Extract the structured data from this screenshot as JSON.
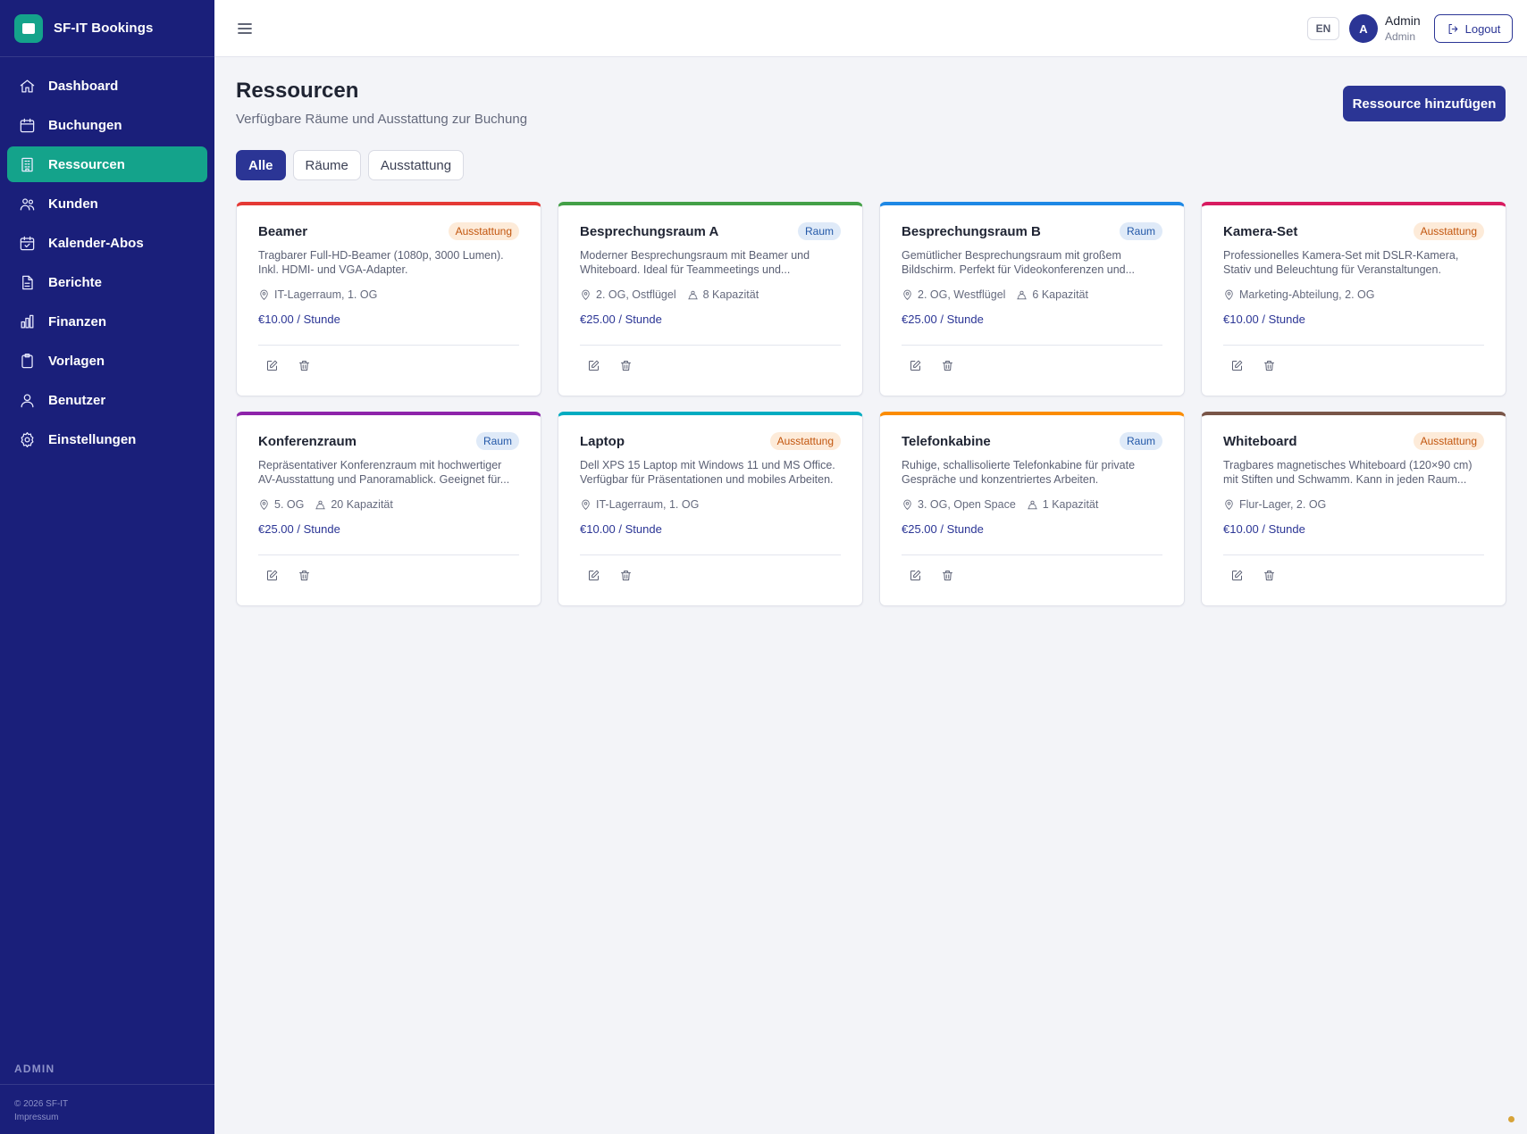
{
  "brand": {
    "name": "SF-IT Bookings"
  },
  "sidebar": {
    "items": [
      {
        "label": "Dashboard",
        "icon": "home-icon",
        "active": false
      },
      {
        "label": "Buchungen",
        "icon": "calendar-icon",
        "active": false
      },
      {
        "label": "Ressourcen",
        "icon": "building-icon",
        "active": true
      },
      {
        "label": "Kunden",
        "icon": "users-icon",
        "active": false
      },
      {
        "label": "Kalender-Abos",
        "icon": "calendar-check-icon",
        "active": false
      },
      {
        "label": "Berichte",
        "icon": "document-icon",
        "active": false
      },
      {
        "label": "Finanzen",
        "icon": "bar-chart-icon",
        "active": false
      },
      {
        "label": "Vorlagen",
        "icon": "clipboard-icon",
        "active": false
      },
      {
        "label": "Benutzer",
        "icon": "user-icon",
        "active": false
      },
      {
        "label": "Einstellungen",
        "icon": "gear-icon",
        "active": false
      }
    ],
    "role_label": "ADMIN",
    "copyright": "© 2026 SF-IT",
    "imprint": "Impressum"
  },
  "topbar": {
    "language": "EN",
    "avatar_initial": "A",
    "user_name": "Admin",
    "user_role": "Admin",
    "logout_label": "Logout"
  },
  "page": {
    "title": "Ressourcen",
    "subtitle": "Verfügbare Räume und Ausstattung zur Buchung",
    "add_button": "Ressource hinzufügen"
  },
  "filters": [
    {
      "label": "Alle",
      "active": true
    },
    {
      "label": "Räume",
      "active": false
    },
    {
      "label": "Ausstattung",
      "active": false
    }
  ],
  "colors": {
    "sidebar_bg": "#1a1f7a",
    "accent_teal": "#14a38b",
    "primary": "#2b3595"
  },
  "resources": [
    {
      "name": "Beamer",
      "type": "Ausstattung",
      "kind": "equip",
      "color": "#e53935",
      "description": "Tragbarer Full-HD-Beamer (1080p, 3000 Lumen). Inkl. HDMI- und VGA-Adapter.",
      "location": "IT-Lagerraum, 1. OG",
      "capacity": "",
      "price": "€10.00 / Stunde"
    },
    {
      "name": "Besprechungsraum A",
      "type": "Raum",
      "kind": "room",
      "color": "#43a047",
      "description": "Moderner Besprechungsraum mit Beamer und Whiteboard. Ideal für Teammeetings und...",
      "location": "2. OG, Ostflügel",
      "capacity": "8 Kapazität",
      "price": "€25.00 / Stunde"
    },
    {
      "name": "Besprechungsraum B",
      "type": "Raum",
      "kind": "room",
      "color": "#1e88e5",
      "description": "Gemütlicher Besprechungsraum mit großem Bildschirm. Perfekt für Videokonferenzen und...",
      "location": "2. OG, Westflügel",
      "capacity": "6 Kapazität",
      "price": "€25.00 / Stunde"
    },
    {
      "name": "Kamera-Set",
      "type": "Ausstattung",
      "kind": "equip",
      "color": "#d81b60",
      "description": "Professionelles Kamera-Set mit DSLR-Kamera, Stativ und Beleuchtung für Veranstaltungen.",
      "location": "Marketing-Abteilung, 2. OG",
      "capacity": "",
      "price": "€10.00 / Stunde"
    },
    {
      "name": "Konferenzraum",
      "type": "Raum",
      "kind": "room",
      "color": "#8e24aa",
      "description": "Repräsentativer Konferenzraum mit hochwertiger AV-Ausstattung und Panoramablick. Geeignet für...",
      "location": "5. OG",
      "capacity": "20 Kapazität",
      "price": "€25.00 / Stunde"
    },
    {
      "name": "Laptop",
      "type": "Ausstattung",
      "kind": "equip",
      "color": "#00acc1",
      "description": "Dell XPS 15 Laptop mit Windows 11 und MS Office. Verfügbar für Präsentationen und mobiles Arbeiten.",
      "location": "IT-Lagerraum, 1. OG",
      "capacity": "",
      "price": "€10.00 / Stunde"
    },
    {
      "name": "Telefonkabine",
      "type": "Raum",
      "kind": "room",
      "color": "#fb8c00",
      "description": "Ruhige, schallisolierte Telefonkabine für private Gespräche und konzentriertes Arbeiten.",
      "location": "3. OG, Open Space",
      "capacity": "1 Kapazität",
      "price": "€25.00 / Stunde"
    },
    {
      "name": "Whiteboard",
      "type": "Ausstattung",
      "kind": "equip",
      "color": "#795548",
      "description": "Tragbares magnetisches Whiteboard (120×90 cm) mit Stiften und Schwamm. Kann in jeden Raum...",
      "location": "Flur-Lager, 2. OG",
      "capacity": "",
      "price": "€10.00 / Stunde"
    }
  ]
}
